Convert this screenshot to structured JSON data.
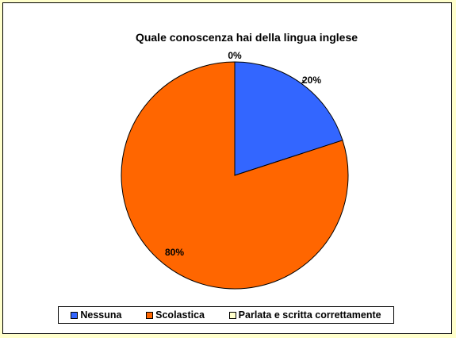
{
  "chart_data": {
    "type": "pie",
    "title": "Quale conoscenza hai della lingua inglese",
    "categories": [
      "Nessuna",
      "Scolastica",
      "Parlata e scritta correttamente"
    ],
    "values": [
      20,
      80,
      0
    ],
    "value_labels": [
      "20%",
      "80%",
      "0%"
    ],
    "colors": [
      "#3366ff",
      "#ff6600",
      "#ffffcc"
    ],
    "legend": "bottom"
  }
}
